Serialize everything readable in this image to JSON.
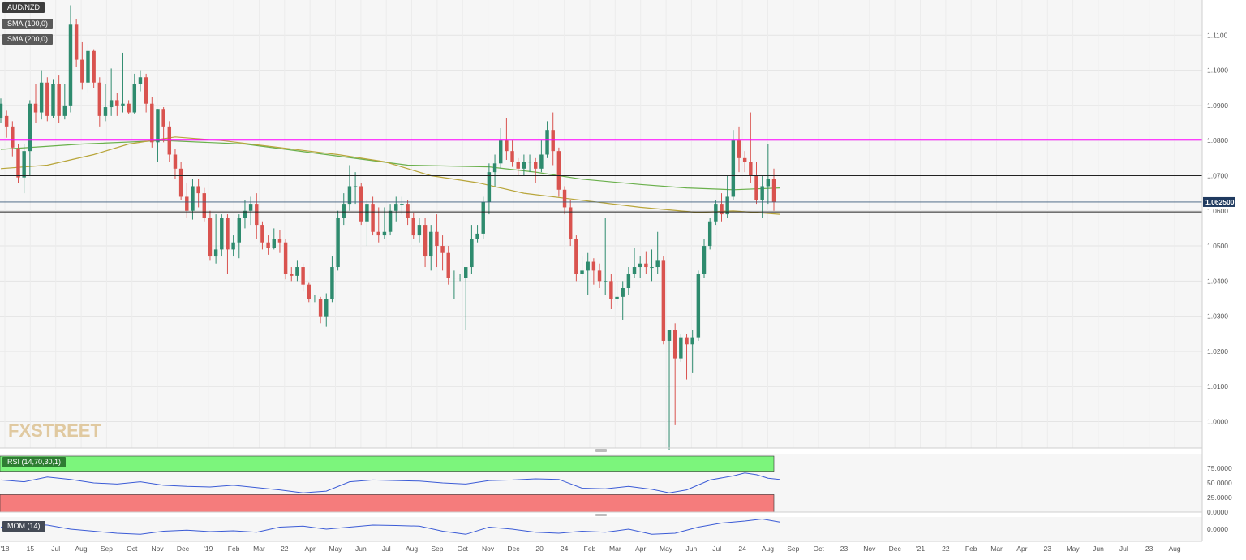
{
  "window": {
    "symbol": "AUD/NZD",
    "logo_text": "FXSTREET"
  },
  "legend": {
    "main_label": "AUD/NZD",
    "sma100_label": "SMA (100,0)",
    "sma200_label": "SMA (200,0)",
    "rsi_label": "RSI (14,70,30,1)",
    "mom_label": "MOM (14)"
  },
  "colors": {
    "bull": "#2e8b6e",
    "bear": "#d9534f",
    "sma100": "#6ab04c",
    "sma200": "#b8a53a",
    "resistance": "#ff00ff",
    "oscillator": "#3b5bd6",
    "rsi_overbought": "#7cf57c",
    "rsi_oversold": "#f57c7c",
    "price_tag": "#1f3a5f"
  },
  "chart_data": [
    {
      "type": "candlestick",
      "title": "AUD/NZD",
      "timeframe": "weekly",
      "ylim": [
        0.9925,
        1.12
      ],
      "y_ticks": [
        "1.0000",
        "1.0100",
        "1.0200",
        "1.0300",
        "1.0400",
        "1.0500",
        "1.0600",
        "1.0700",
        "1.0800",
        "1.0900",
        "1.1000",
        "1.1100"
      ],
      "x_ticks": [
        "'18",
        "15",
        "Jul",
        "Aug",
        "Sep",
        "Oct",
        "Nov",
        "Dec",
        "'19",
        "Feb",
        "Mar",
        "22",
        "Apr",
        "May",
        "Jun",
        "Jul",
        "Aug",
        "Sep",
        "Oct",
        "Nov",
        "Dec",
        "'20",
        "24",
        "Feb",
        "Mar",
        "Apr",
        "May",
        "Jun",
        "Jul",
        "24",
        "Aug",
        "Sep",
        "Oct",
        "23",
        "Nov",
        "Dec",
        "'21",
        "22",
        "Feb",
        "Mar",
        "Apr",
        "23",
        "May",
        "Jun",
        "Jul",
        "23",
        "Aug"
      ],
      "last_price_label": "1.062500",
      "last_price": 1.0625,
      "horizontal_levels": [
        {
          "value": 1.0802,
          "style": "resistance"
        },
        {
          "value": 1.07,
          "style": "support"
        },
        {
          "value": 1.0597,
          "style": "support"
        }
      ],
      "candles": [
        [
          1.0865,
          1.0905,
          1.085,
          1.092
        ],
        [
          1.087,
          1.084,
          1.0808,
          1.0885
        ],
        [
          1.084,
          1.078,
          1.0755,
          1.0855
        ],
        [
          1.0775,
          1.0695,
          1.068,
          1.079
        ],
        [
          1.0695,
          1.077,
          1.065,
          1.079
        ],
        [
          1.077,
          1.0905,
          1.07,
          1.0915
        ],
        [
          1.0905,
          1.088,
          1.085,
          1.096
        ],
        [
          1.088,
          1.0965,
          1.086,
          1.1
        ],
        [
          1.0965,
          1.087,
          1.0855,
          1.098
        ],
        [
          1.087,
          1.096,
          1.0865,
          1.0975
        ],
        [
          1.096,
          1.087,
          1.085,
          1.0985
        ],
        [
          1.087,
          1.09,
          1.086,
          1.096
        ],
        [
          1.09,
          1.113,
          1.088,
          1.1185
        ],
        [
          1.113,
          1.103,
          1.101,
          1.1145
        ],
        [
          1.103,
          1.0965,
          1.0945,
          1.108
        ],
        [
          1.0965,
          1.1055,
          1.0935,
          1.1075
        ],
        [
          1.1055,
          1.0965,
          1.095,
          1.106
        ],
        [
          1.0965,
          1.087,
          1.084,
          1.098
        ],
        [
          1.087,
          1.0895,
          1.0855,
          1.096
        ],
        [
          1.0895,
          1.0915,
          1.087,
          1.1005
        ],
        [
          1.0915,
          1.09,
          1.087,
          1.0935
        ],
        [
          1.09,
          1.0905,
          1.088,
          1.105
        ],
        [
          1.0905,
          1.088,
          1.0875,
          1.0915
        ],
        [
          1.088,
          1.096,
          1.0875,
          1.099
        ],
        [
          1.096,
          1.098,
          1.094,
          1.1
        ],
        [
          1.098,
          1.0905,
          1.088,
          1.099
        ],
        [
          1.0905,
          1.0795,
          1.078,
          1.0925
        ],
        [
          1.0795,
          1.089,
          1.074,
          1.089
        ],
        [
          1.089,
          1.084,
          1.0795,
          1.0895
        ],
        [
          1.084,
          1.076,
          1.074,
          1.0855
        ],
        [
          1.076,
          1.072,
          1.069,
          1.0775
        ],
        [
          1.072,
          1.064,
          1.063,
          1.074
        ],
        [
          1.064,
          1.06,
          1.058,
          1.068
        ],
        [
          1.06,
          1.067,
          1.0575,
          1.069
        ],
        [
          1.067,
          1.065,
          1.061,
          1.069
        ],
        [
          1.065,
          1.058,
          1.057,
          1.0665
        ],
        [
          1.058,
          1.047,
          1.046,
          1.06
        ],
        [
          1.047,
          1.049,
          1.045,
          1.059
        ],
        [
          1.049,
          1.058,
          1.047,
          1.059
        ],
        [
          1.058,
          1.049,
          1.042,
          1.059
        ],
        [
          1.049,
          1.051,
          1.047,
          1.053
        ],
        [
          1.051,
          1.058,
          1.0465,
          1.059
        ],
        [
          1.058,
          1.06,
          1.055,
          1.063
        ],
        [
          1.06,
          1.062,
          1.056,
          1.064
        ],
        [
          1.062,
          1.056,
          1.052,
          1.065
        ],
        [
          1.056,
          1.051,
          1.049,
          1.057
        ],
        [
          1.051,
          1.0495,
          1.0475,
          1.053
        ],
        [
          1.0495,
          1.052,
          1.049,
          1.055
        ],
        [
          1.052,
          1.051,
          1.048,
          1.0545
        ],
        [
          1.051,
          1.042,
          1.0405,
          1.052
        ],
        [
          1.042,
          1.0415,
          1.04,
          1.044
        ],
        [
          1.0415,
          1.044,
          1.04,
          1.046
        ],
        [
          1.044,
          1.039,
          1.037,
          1.045
        ],
        [
          1.039,
          1.035,
          1.034,
          1.0395
        ],
        [
          1.035,
          1.035,
          1.034,
          1.036
        ],
        [
          1.035,
          1.03,
          1.028,
          1.0355
        ],
        [
          1.03,
          1.035,
          1.027,
          1.0365
        ],
        [
          1.035,
          1.044,
          1.034,
          1.047
        ],
        [
          1.044,
          1.058,
          1.043,
          1.06
        ],
        [
          1.058,
          1.062,
          1.056,
          1.065
        ],
        [
          1.062,
          1.067,
          1.06,
          1.073
        ],
        [
          1.067,
          1.067,
          1.062,
          1.071
        ],
        [
          1.067,
          1.057,
          1.056,
          1.068
        ],
        [
          1.057,
          1.062,
          1.05,
          1.063
        ],
        [
          1.062,
          1.054,
          1.053,
          1.064
        ],
        [
          1.054,
          1.053,
          1.051,
          1.061
        ],
        [
          1.053,
          1.054,
          1.052,
          1.061
        ],
        [
          1.054,
          1.06,
          1.053,
          1.062
        ],
        [
          1.06,
          1.062,
          1.057,
          1.064
        ],
        [
          1.062,
          1.062,
          1.059,
          1.064
        ],
        [
          1.062,
          1.058,
          1.056,
          1.063
        ],
        [
          1.058,
          1.053,
          1.052,
          1.0595
        ],
        [
          1.053,
          1.056,
          1.051,
          1.058
        ],
        [
          1.056,
          1.047,
          1.044,
          1.058
        ],
        [
          1.047,
          1.054,
          1.043,
          1.056
        ],
        [
          1.054,
          1.05,
          1.044,
          1.059
        ],
        [
          1.05,
          1.048,
          1.043,
          1.053
        ],
        [
          1.048,
          1.041,
          1.039,
          1.05
        ],
        [
          1.041,
          1.041,
          1.035,
          1.043
        ],
        [
          1.041,
          1.041,
          1.04,
          1.042
        ],
        [
          1.041,
          1.044,
          1.026,
          1.044
        ],
        [
          1.044,
          1.052,
          1.042,
          1.056
        ],
        [
          1.052,
          1.0535,
          1.051,
          1.056
        ],
        [
          1.0535,
          1.0625,
          1.052,
          1.064
        ],
        [
          1.0625,
          1.071,
          1.059,
          1.0735
        ],
        [
          1.071,
          1.0735,
          1.067,
          1.076
        ],
        [
          1.0735,
          1.08,
          1.072,
          1.0835
        ],
        [
          1.08,
          1.077,
          1.0745,
          1.0865
        ],
        [
          1.077,
          1.074,
          1.0725,
          1.08
        ],
        [
          1.074,
          1.072,
          1.07,
          1.075
        ],
        [
          1.072,
          1.074,
          1.07,
          1.076
        ],
        [
          1.074,
          1.074,
          1.071,
          1.076
        ],
        [
          1.074,
          1.072,
          1.068,
          1.075
        ],
        [
          1.072,
          1.076,
          1.071,
          1.08
        ],
        [
          1.076,
          1.083,
          1.075,
          1.0855
        ],
        [
          1.083,
          1.077,
          1.073,
          1.088
        ],
        [
          1.077,
          1.066,
          1.064,
          1.078
        ],
        [
          1.066,
          1.061,
          1.059,
          1.067
        ],
        [
          1.061,
          1.052,
          1.05,
          1.063
        ],
        [
          1.052,
          1.042,
          1.04,
          1.053
        ],
        [
          1.042,
          1.043,
          1.041,
          1.047
        ],
        [
          1.043,
          1.0455,
          1.036,
          1.048
        ],
        [
          1.0455,
          1.043,
          1.039,
          1.0465
        ],
        [
          1.043,
          1.04,
          1.038,
          1.045
        ],
        [
          1.04,
          1.04,
          1.036,
          1.058
        ],
        [
          1.04,
          1.035,
          1.032,
          1.042
        ],
        [
          1.035,
          1.0355,
          1.033,
          1.04
        ],
        [
          1.0355,
          1.038,
          1.029,
          1.04
        ],
        [
          1.038,
          1.042,
          1.036,
          1.044
        ],
        [
          1.042,
          1.044,
          1.041,
          1.0495
        ],
        [
          1.044,
          1.045,
          1.041,
          1.047
        ],
        [
          1.045,
          1.044,
          1.042,
          1.0485
        ],
        [
          1.044,
          1.044,
          1.04,
          1.049
        ],
        [
          1.044,
          1.046,
          1.042,
          1.054
        ],
        [
          1.046,
          1.023,
          1.022,
          1.047
        ],
        [
          1.023,
          1.026,
          0.992,
          1.026
        ],
        [
          1.026,
          1.018,
          0.999,
          1.028
        ],
        [
          1.018,
          1.024,
          1.017,
          1.025
        ],
        [
          1.024,
          1.022,
          1.012,
          1.025
        ],
        [
          1.022,
          1.024,
          1.014,
          1.026
        ],
        [
          1.024,
          1.042,
          1.023,
          1.043
        ],
        [
          1.042,
          1.05,
          1.041,
          1.052
        ],
        [
          1.05,
          1.057,
          1.049,
          1.058
        ],
        [
          1.057,
          1.062,
          1.056,
          1.063
        ],
        [
          1.062,
          1.059,
          1.057,
          1.065
        ],
        [
          1.059,
          1.064,
          1.058,
          1.07
        ],
        [
          1.064,
          1.08,
          1.063,
          1.083
        ],
        [
          1.08,
          1.075,
          1.071,
          1.084
        ],
        [
          1.075,
          1.074,
          1.071,
          1.077
        ],
        [
          1.074,
          1.07,
          1.068,
          1.088
        ],
        [
          1.07,
          1.063,
          1.062,
          1.074
        ],
        [
          1.063,
          1.067,
          1.058,
          1.07
        ],
        [
          1.067,
          1.069,
          1.062,
          1.079
        ],
        [
          1.069,
          1.0625,
          1.06,
          1.072
        ]
      ],
      "sma100": [
        [
          0,
          1.0775
        ],
        [
          14,
          1.079
        ],
        [
          28,
          1.08
        ],
        [
          42,
          1.079
        ],
        [
          56,
          1.076
        ],
        [
          70,
          1.073
        ],
        [
          84,
          1.0725
        ],
        [
          92,
          1.071
        ],
        [
          100,
          1.069
        ],
        [
          110,
          1.0675
        ],
        [
          118,
          1.0665
        ],
        [
          126,
          1.066
        ],
        [
          134,
          1.0665
        ]
      ],
      "sma200": [
        [
          0,
          1.072
        ],
        [
          8,
          1.073
        ],
        [
          16,
          1.076
        ],
        [
          22,
          1.079
        ],
        [
          30,
          1.081
        ],
        [
          38,
          1.08
        ],
        [
          48,
          1.078
        ],
        [
          58,
          1.076
        ],
        [
          66,
          1.074
        ],
        [
          74,
          1.07
        ],
        [
          82,
          1.068
        ],
        [
          90,
          1.065
        ],
        [
          100,
          1.063
        ],
        [
          110,
          1.061
        ],
        [
          120,
          1.0595
        ],
        [
          126,
          1.06
        ],
        [
          134,
          1.059
        ]
      ]
    },
    {
      "type": "line",
      "title": "RSI (14,70,30,1)",
      "ylim": [
        0,
        100
      ],
      "y_ticks": [
        "75.0000",
        "50.0000",
        "25.0000",
        "0.0000"
      ],
      "overbought": 70,
      "oversold": 30,
      "values": [
        [
          0,
          55
        ],
        [
          4,
          52
        ],
        [
          8,
          60
        ],
        [
          12,
          56
        ],
        [
          16,
          50
        ],
        [
          20,
          48
        ],
        [
          24,
          52
        ],
        [
          28,
          46
        ],
        [
          32,
          44
        ],
        [
          36,
          43
        ],
        [
          40,
          46
        ],
        [
          44,
          42
        ],
        [
          48,
          38
        ],
        [
          52,
          33
        ],
        [
          56,
          36
        ],
        [
          60,
          52
        ],
        [
          64,
          55
        ],
        [
          68,
          54
        ],
        [
          72,
          53
        ],
        [
          76,
          50
        ],
        [
          80,
          48
        ],
        [
          84,
          54
        ],
        [
          88,
          55
        ],
        [
          92,
          57
        ],
        [
          96,
          56
        ],
        [
          100,
          41
        ],
        [
          104,
          40
        ],
        [
          108,
          44
        ],
        [
          112,
          39
        ],
        [
          115,
          33
        ],
        [
          118,
          38
        ],
        [
          122,
          55
        ],
        [
          126,
          62
        ],
        [
          128,
          67
        ],
        [
          130,
          64
        ],
        [
          132,
          58
        ],
        [
          134,
          56
        ]
      ]
    },
    {
      "type": "line",
      "title": "MOM (14)",
      "y_ticks": [
        "0.0000"
      ],
      "ylim": [
        -0.06,
        0.06
      ],
      "values": [
        [
          0,
          0.01
        ],
        [
          4,
          0.025
        ],
        [
          8,
          0.02
        ],
        [
          12,
          0.0
        ],
        [
          16,
          -0.01
        ],
        [
          20,
          -0.02
        ],
        [
          24,
          -0.025
        ],
        [
          28,
          -0.01
        ],
        [
          32,
          -0.005
        ],
        [
          36,
          -0.012
        ],
        [
          40,
          -0.008
        ],
        [
          44,
          -0.015
        ],
        [
          48,
          0.01
        ],
        [
          52,
          0.015
        ],
        [
          56,
          0.0
        ],
        [
          60,
          0.01
        ],
        [
          64,
          0.02
        ],
        [
          68,
          0.018
        ],
        [
          72,
          0.015
        ],
        [
          76,
          -0.01
        ],
        [
          80,
          -0.025
        ],
        [
          84,
          0.01
        ],
        [
          88,
          0.0
        ],
        [
          92,
          -0.015
        ],
        [
          96,
          -0.02
        ],
        [
          100,
          -0.01
        ],
        [
          104,
          -0.015
        ],
        [
          108,
          0.0
        ],
        [
          112,
          -0.025
        ],
        [
          116,
          -0.02
        ],
        [
          120,
          0.01
        ],
        [
          124,
          0.03
        ],
        [
          128,
          0.04
        ],
        [
          131,
          0.05
        ],
        [
          134,
          0.035
        ]
      ]
    }
  ]
}
